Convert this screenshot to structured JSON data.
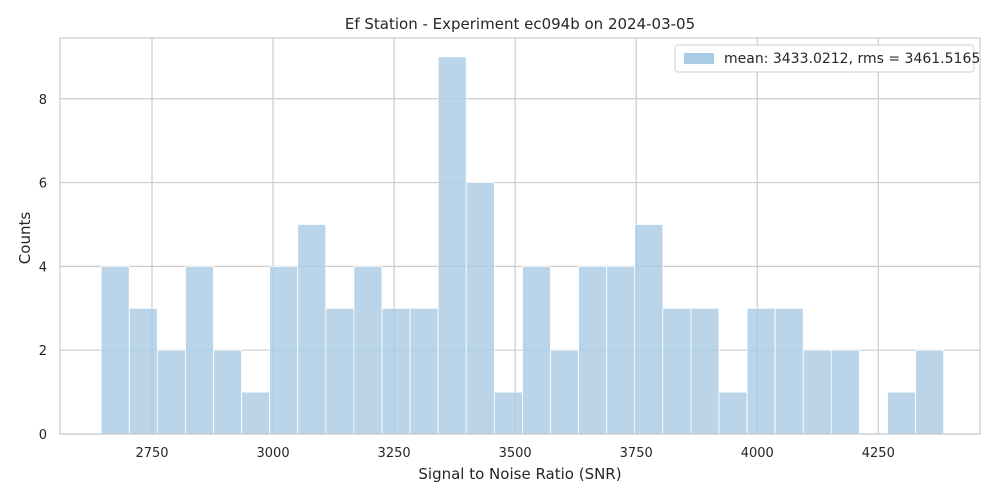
{
  "chart_data": {
    "type": "bar",
    "title": "Ef Station - Experiment ec094b on 2024-03-05",
    "xlabel": "Signal to Noise Ratio (SNR)",
    "ylabel": "Counts",
    "xlim": [
      2560,
      4460
    ],
    "ylim": [
      0,
      9.45
    ],
    "xticks": [
      2750,
      3000,
      3250,
      3500,
      3750,
      4000,
      4250
    ],
    "yticks": [
      0,
      2,
      4,
      6,
      8
    ],
    "grid": true,
    "legend_position": "top-right",
    "bar_color": "#a9cbe3",
    "series": [
      {
        "name": "mean: 3433.0212, rms = 3461.5165",
        "bin_start": 2645,
        "bin_width": 58,
        "values": [
          4,
          3,
          2,
          4,
          2,
          1,
          4,
          5,
          3,
          4,
          3,
          3,
          9,
          6,
          1,
          4,
          2,
          4,
          4,
          5,
          3,
          3,
          1,
          3,
          3,
          2,
          2,
          0,
          1,
          2
        ]
      }
    ]
  }
}
